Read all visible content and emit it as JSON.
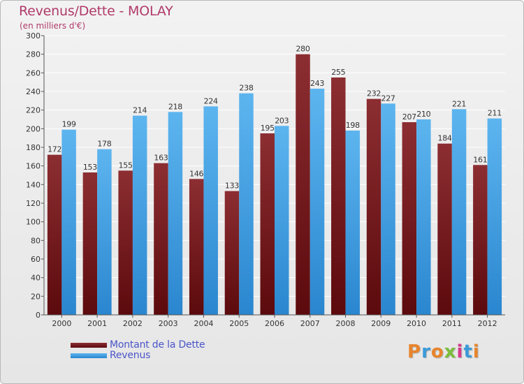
{
  "header": {
    "title": "Revenus/Dette - MOLAY",
    "subtitle": "(en milliers d'€)"
  },
  "legend": {
    "items": [
      {
        "label": "Montant de la Dette",
        "color": "#6e0f12"
      },
      {
        "label": "Revenus",
        "color": "#3f9fe0"
      }
    ]
  },
  "logo": {
    "text": "Proxiti",
    "icon": "proxiti-logo"
  },
  "colors": {
    "debt_dark": "#5c0a0d",
    "debt_light": "#8c2e32",
    "revenue_dark": "#2a86cf",
    "revenue_light": "#5db5ef",
    "grid": "#ffffff",
    "axis": "#555555"
  },
  "chart_data": {
    "type": "bar",
    "categories": [
      "2000",
      "2001",
      "2002",
      "2003",
      "2004",
      "2005",
      "2006",
      "2007",
      "2008",
      "2009",
      "2010",
      "2011",
      "2012"
    ],
    "series": [
      {
        "name": "Montant de la Dette",
        "values": [
          172,
          153,
          155,
          163,
          146,
          133,
          195,
          280,
          255,
          232,
          207,
          184,
          161
        ]
      },
      {
        "name": "Revenus",
        "values": [
          199,
          178,
          214,
          218,
          224,
          238,
          203,
          243,
          198,
          227,
          210,
          221,
          211
        ]
      }
    ],
    "title": "Revenus/Dette - MOLAY",
    "subtitle": "(en milliers d'€)",
    "ylim": [
      0,
      300
    ],
    "yticks": [
      0,
      20,
      40,
      60,
      80,
      100,
      120,
      140,
      160,
      180,
      200,
      220,
      240,
      260,
      280,
      300
    ],
    "grid": true,
    "legend_position": "bottom-left"
  }
}
